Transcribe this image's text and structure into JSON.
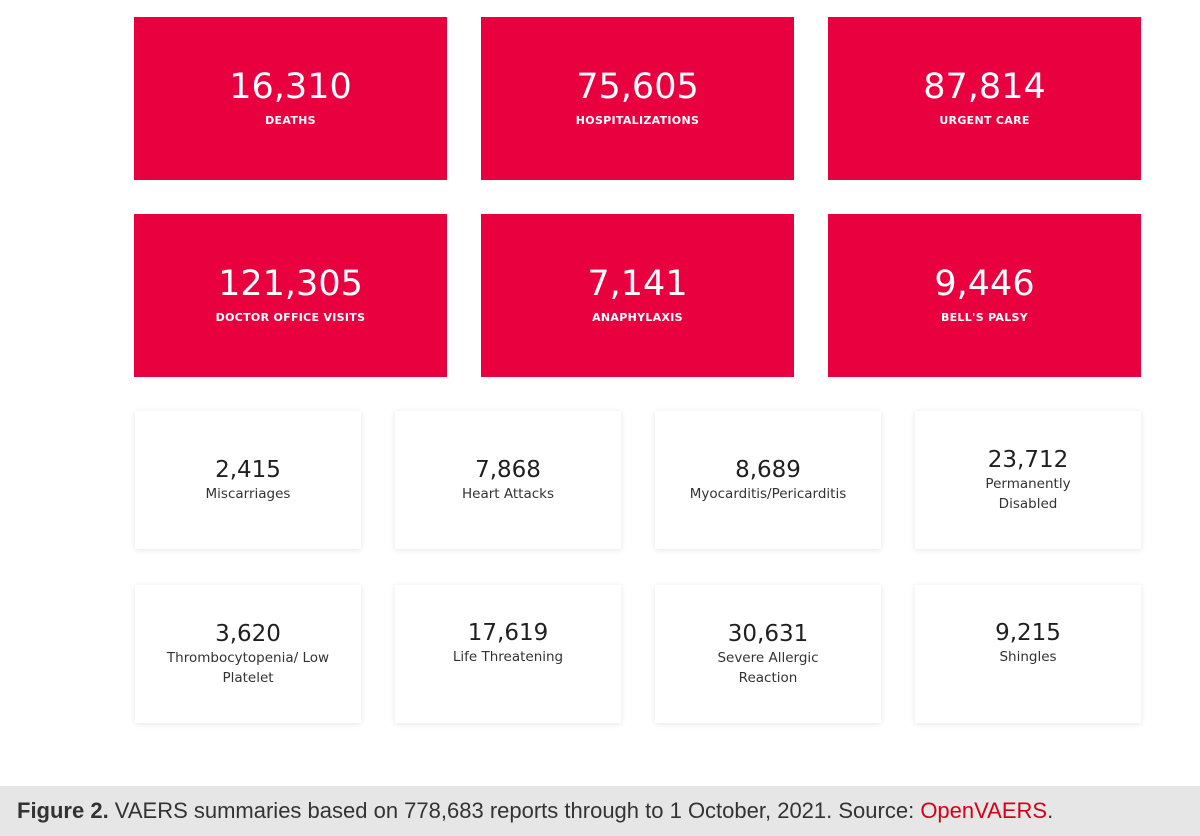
{
  "red_cards": [
    {
      "value": "16,310",
      "label": "DEATHS"
    },
    {
      "value": "75,605",
      "label": "HOSPITALIZATIONS"
    },
    {
      "value": "87,814",
      "label": "URGENT CARE"
    },
    {
      "value": "121,305",
      "label": "DOCTOR OFFICE VISITS"
    },
    {
      "value": "7,141",
      "label": "ANAPHYLAXIS"
    },
    {
      "value": "9,446",
      "label": "BELL'S PALSY"
    }
  ],
  "white_cards": [
    {
      "value": "2,415",
      "label": "Miscarriages"
    },
    {
      "value": "7,868",
      "label": "Heart Attacks"
    },
    {
      "value": "8,689",
      "label": "Myocarditis/Pericarditis"
    },
    {
      "value": "23,712",
      "label": "Permanently Disabled"
    },
    {
      "value": "3,620",
      "label": "Thrombocytopenia/ Low Platelet"
    },
    {
      "value": "17,619",
      "label": "Life Threatening"
    },
    {
      "value": "30,631",
      "label": "Severe Allergic Reaction"
    },
    {
      "value": "9,215",
      "label": "Shingles"
    }
  ],
  "caption": {
    "figure_label": "Figure 2.",
    "text": " VAERS summaries based on 778,683 reports through to 1 October, 2021. Source: ",
    "source_link": "OpenVAERS",
    "trailing": "."
  },
  "colors": {
    "card_red": "#e8003f",
    "caption_bg": "#e6e6e6",
    "link_red": "#d0021b"
  }
}
